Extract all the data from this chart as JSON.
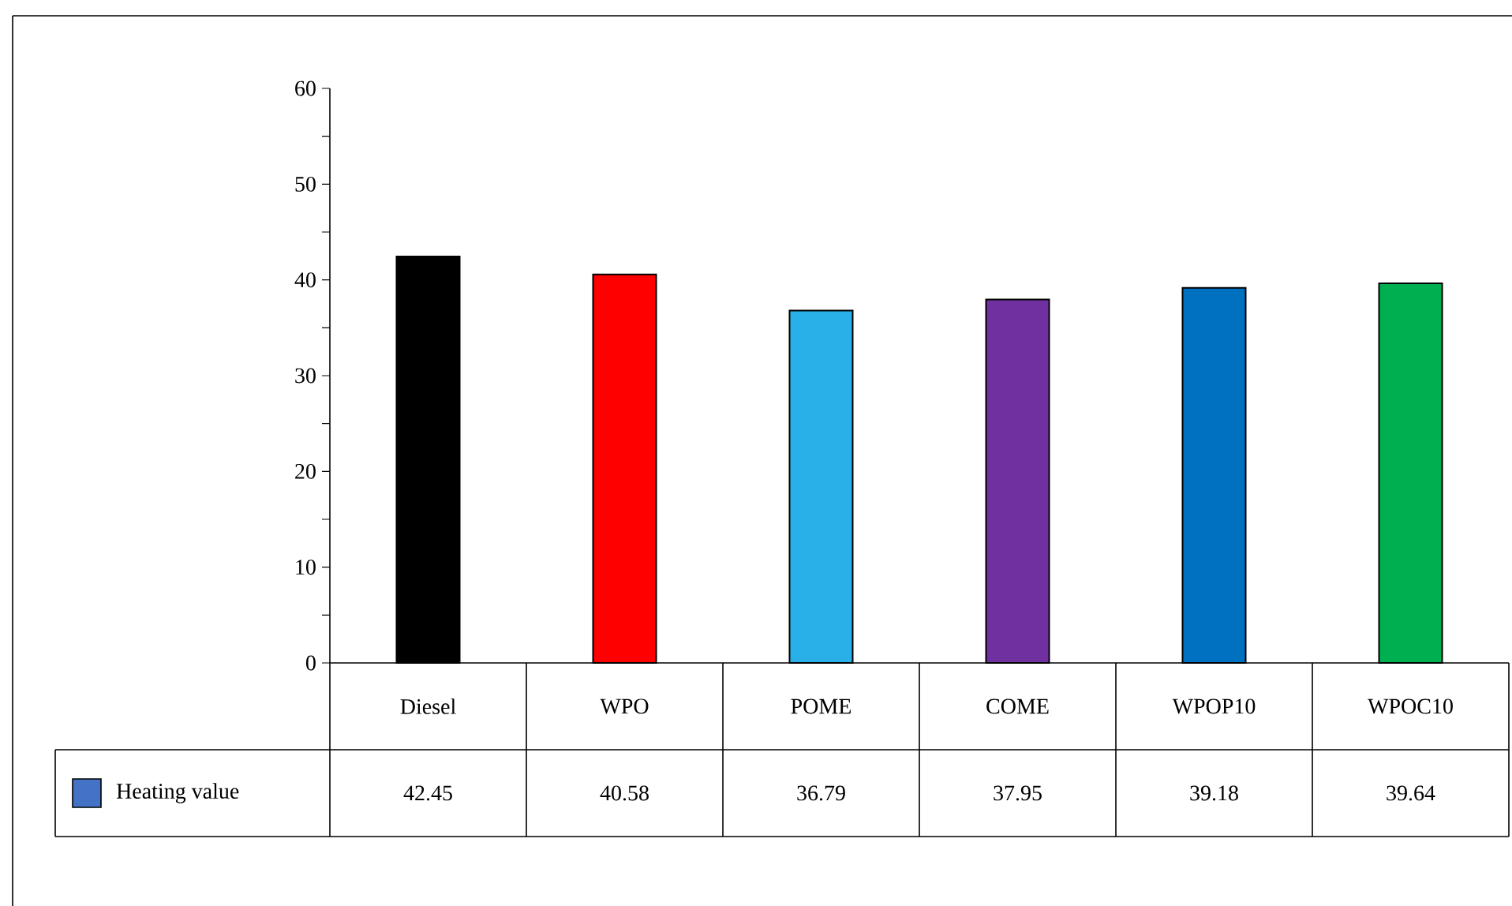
{
  "chart_data": {
    "type": "bar",
    "categories": [
      "Diesel",
      "WPO",
      "POME",
      "COME",
      "WPOP10",
      "WPOC10"
    ],
    "series": [
      {
        "name": "Heating value",
        "color": "#4472c4",
        "colors": [
          "#000000",
          "#ff0000",
          "#29b0e8",
          "#7030a0",
          "#0070c0",
          "#00b050"
        ],
        "values": [
          42.45,
          40.58,
          36.79,
          37.95,
          39.18,
          39.64
        ]
      }
    ],
    "ylim": [
      0,
      60
    ],
    "yticks": [
      0,
      10,
      20,
      30,
      40,
      50,
      60
    ],
    "grid": false,
    "legend": "bottom",
    "data_labels": true
  }
}
